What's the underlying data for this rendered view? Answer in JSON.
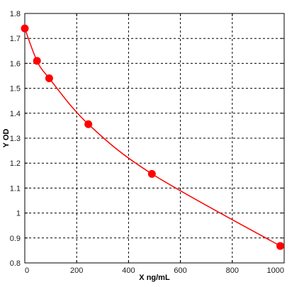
{
  "chart_data": {
    "type": "line",
    "title": "",
    "xlabel": "X ng/mL",
    "ylabel": "Y OD",
    "xlim": [
      0,
      1000
    ],
    "ylim": [
      0.8,
      1.8
    ],
    "x_ticks": [
      0,
      200,
      400,
      600,
      800,
      1000
    ],
    "y_ticks": [
      0.8,
      0.9,
      1,
      1.1,
      1.2,
      1.3,
      1.4,
      1.5,
      1.6,
      1.7,
      1.8
    ],
    "grid": true,
    "legend": "none",
    "series": [
      {
        "color": "#ff0000",
        "points": [
          {
            "x": 0,
            "y": 1.74
          },
          {
            "x": 47,
            "y": 1.61
          },
          {
            "x": 94,
            "y": 1.54
          },
          {
            "x": 245,
            "y": 1.356
          },
          {
            "x": 490,
            "y": 1.157
          },
          {
            "x": 985,
            "y": 0.868
          }
        ]
      }
    ]
  }
}
